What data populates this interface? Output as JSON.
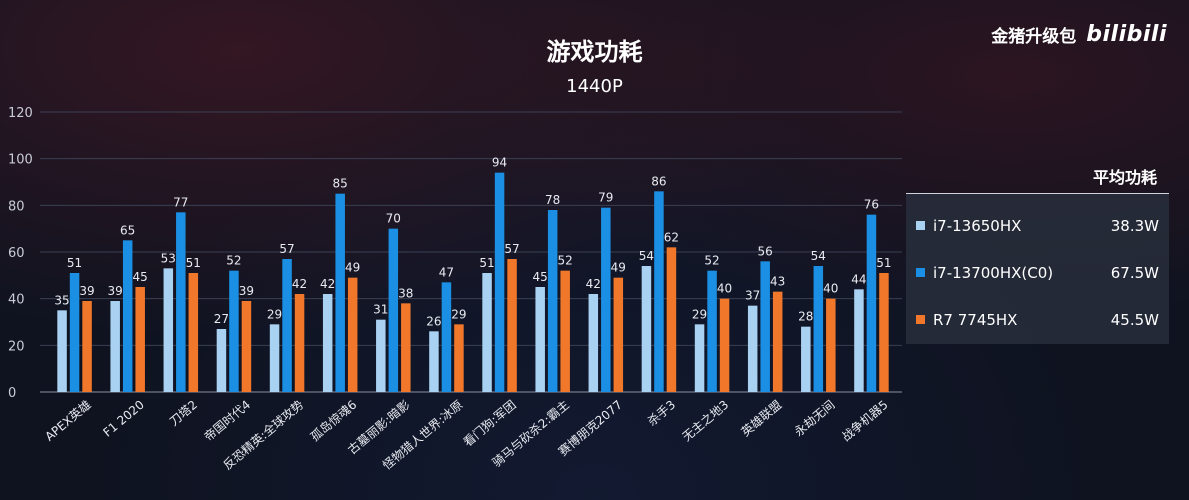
{
  "brand": {
    "text": "金猪升级包",
    "logo": "bilibili"
  },
  "chart_data": {
    "type": "bar",
    "title": "游戏功耗",
    "subtitle": "1440P",
    "ylim": [
      0,
      120
    ],
    "yticks": [
      0,
      20,
      40,
      60,
      80,
      100,
      120
    ],
    "grid": true,
    "categories": [
      "APEX英雄",
      "F1 2020",
      "刀塔2",
      "帝国时代4",
      "反恐精英:全球攻势",
      "孤岛惊魂6",
      "古墓丽影:暗影",
      "怪物猎人世界:冰原",
      "看门狗:军团",
      "骑马与砍杀2:霸主",
      "赛博朋克2077",
      "杀手3",
      "无主之地3",
      "英雄联盟",
      "永劫无间",
      "战争机器5"
    ],
    "series": [
      {
        "name": "i7-13650HX",
        "color": "#a9d1f2",
        "values": [
          35,
          39,
          53,
          27,
          29,
          42,
          31,
          26,
          51,
          45,
          42,
          54,
          29,
          37,
          28,
          44
        ]
      },
      {
        "name": "i7-13700HX(C0)",
        "color": "#1a8fe3",
        "values": [
          51,
          65,
          77,
          52,
          57,
          85,
          70,
          47,
          94,
          78,
          79,
          86,
          52,
          56,
          54,
          76
        ]
      },
      {
        "name": "R7 7745HX",
        "color": "#f1772a",
        "values": [
          39,
          45,
          51,
          39,
          42,
          49,
          38,
          29,
          57,
          52,
          49,
          62,
          40,
          43,
          40,
          51
        ]
      }
    ],
    "legend": {
      "title": "平均功耗",
      "placement": "right",
      "items": [
        {
          "name": "i7-13650HX",
          "value": "38.3W"
        },
        {
          "name": "i7-13700HX(C0)",
          "value": "67.5W"
        },
        {
          "name": "R7 7745HX",
          "value": "45.5W"
        }
      ]
    }
  }
}
